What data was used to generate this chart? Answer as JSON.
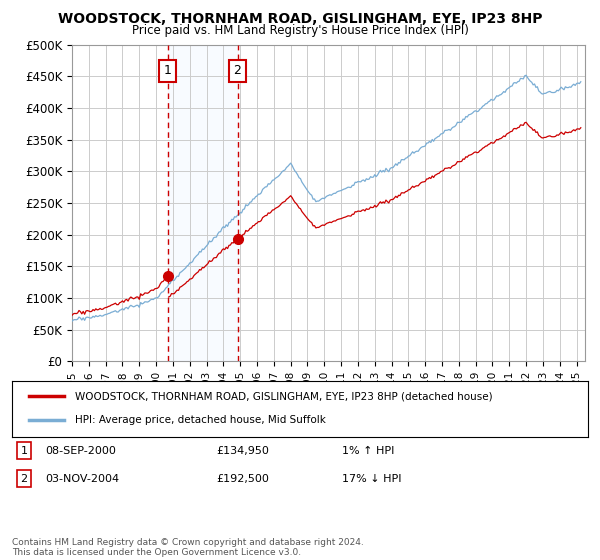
{
  "title": "WOODSTOCK, THORNHAM ROAD, GISLINGHAM, EYE, IP23 8HP",
  "subtitle": "Price paid vs. HM Land Registry's House Price Index (HPI)",
  "ylabel_ticks": [
    "£0",
    "£50K",
    "£100K",
    "£150K",
    "£200K",
    "£250K",
    "£300K",
    "£350K",
    "£400K",
    "£450K",
    "£500K"
  ],
  "ytick_values": [
    0,
    50000,
    100000,
    150000,
    200000,
    250000,
    300000,
    350000,
    400000,
    450000,
    500000
  ],
  "ylim": [
    0,
    500000
  ],
  "xlim_start": 1995.0,
  "xlim_end": 2025.5,
  "hpi_color": "#7aadd4",
  "price_color": "#cc0000",
  "background_color": "#ffffff",
  "grid_color": "#cccccc",
  "sale1_x": 2000.69,
  "sale1_y": 134950,
  "sale2_x": 2004.84,
  "sale2_y": 192500,
  "annotation_box_color": "#cc0000",
  "shade_color": "#ddeeff",
  "legend_text1": "WOODSTOCK, THORNHAM ROAD, GISLINGHAM, EYE, IP23 8HP (detached house)",
  "legend_text2": "HPI: Average price, detached house, Mid Suffolk",
  "note1_label": "1",
  "note1_date": "08-SEP-2000",
  "note1_price": "£134,950",
  "note1_hpi": "1% ↑ HPI",
  "note2_label": "2",
  "note2_date": "03-NOV-2004",
  "note2_price": "£192,500",
  "note2_hpi": "17% ↓ HPI",
  "footer": "Contains HM Land Registry data © Crown copyright and database right 2024.\nThis data is licensed under the Open Government Licence v3.0."
}
